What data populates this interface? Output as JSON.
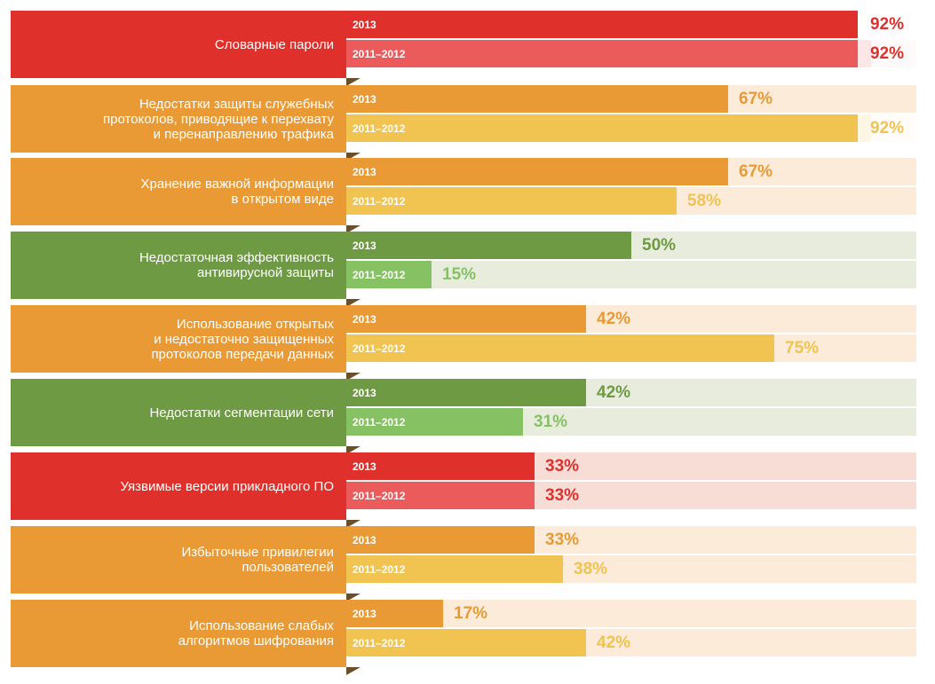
{
  "chart_data": {
    "type": "bar",
    "orientation": "horizontal",
    "title": "",
    "xlim": [
      0,
      100
    ],
    "series": [
      {
        "name": "2013"
      },
      {
        "name": "2011–2012"
      }
    ],
    "categories": [
      {
        "label": "Словарные пароли",
        "color": "red",
        "values": {
          "2013": 92,
          "2011–2012": 92
        },
        "value_labels": {
          "2013": "92%",
          "2011–2012": "92%"
        }
      },
      {
        "label": "Недостатки защиты служебных\nпротоколов, приводящие к перехвату\nи перенаправлению трафика",
        "color": "orange",
        "values": {
          "2013": 67,
          "2011–2012": 92
        },
        "value_labels": {
          "2013": "67%",
          "2011–2012": "92%"
        }
      },
      {
        "label": "Хранение важной информации\nв открытом виде",
        "color": "orange",
        "values": {
          "2013": 67,
          "2011–2012": 58
        },
        "value_labels": {
          "2013": "67%",
          "2011–2012": "58%"
        }
      },
      {
        "label": "Недостаточная эффективность\nантивирусной защиты",
        "color": "green",
        "values": {
          "2013": 50,
          "2011–2012": 15
        },
        "value_labels": {
          "2013": "50%",
          "2011–2012": "15%"
        }
      },
      {
        "label": "Использование открытых\nи недостаточно защищенных\nпротоколов передачи данных",
        "color": "orange",
        "values": {
          "2013": 42,
          "2011–2012": 75
        },
        "value_labels": {
          "2013": "42%",
          "2011–2012": "75%"
        }
      },
      {
        "label": "Недостатки сегментации сети",
        "color": "green",
        "values": {
          "2013": 42,
          "2011–2012": 31
        },
        "value_labels": {
          "2013": "42%",
          "2011–2012": "31%"
        }
      },
      {
        "label": "Уязвимые версии прикладного ПО",
        "color": "red",
        "values": {
          "2013": 33,
          "2011–2012": 33
        },
        "value_labels": {
          "2013": "33%",
          "2011–2012": "33%"
        }
      },
      {
        "label": "Избыточные привилегии\nпользователей",
        "color": "orange",
        "values": {
          "2013": 33,
          "2011–2012": 38
        },
        "value_labels": {
          "2013": "33%",
          "2011–2012": "38%"
        }
      },
      {
        "label": "Использование слабых\nалгоритмов шифрования",
        "color": "orange",
        "values": {
          "2013": 17,
          "2011–2012": 42
        },
        "value_labels": {
          "2013": "17%",
          "2011–2012": "42%"
        }
      }
    ],
    "palettes": {
      "red": {
        "label_bg": "#e0302b",
        "bar_2013": "#e0302b",
        "bar_prev": "#ec5b5b",
        "track": "#f8dcd6",
        "value_text": "#e0302b"
      },
      "orange": {
        "label_bg": "#e99a35",
        "bar_2013": "#e99a35",
        "bar_prev": "#f1c350",
        "track": "#fbebd8",
        "value_text_2013": "#e99a35",
        "value_text_prev": "#f1c350"
      },
      "green": {
        "label_bg": "#6f9a44",
        "bar_2013": "#6f9a44",
        "bar_prev": "#86c163",
        "track": "#e7ecdd",
        "value_text_2013": "#6f9a44",
        "value_text_prev": "#86c163"
      }
    },
    "grid": false,
    "legend": "none"
  }
}
